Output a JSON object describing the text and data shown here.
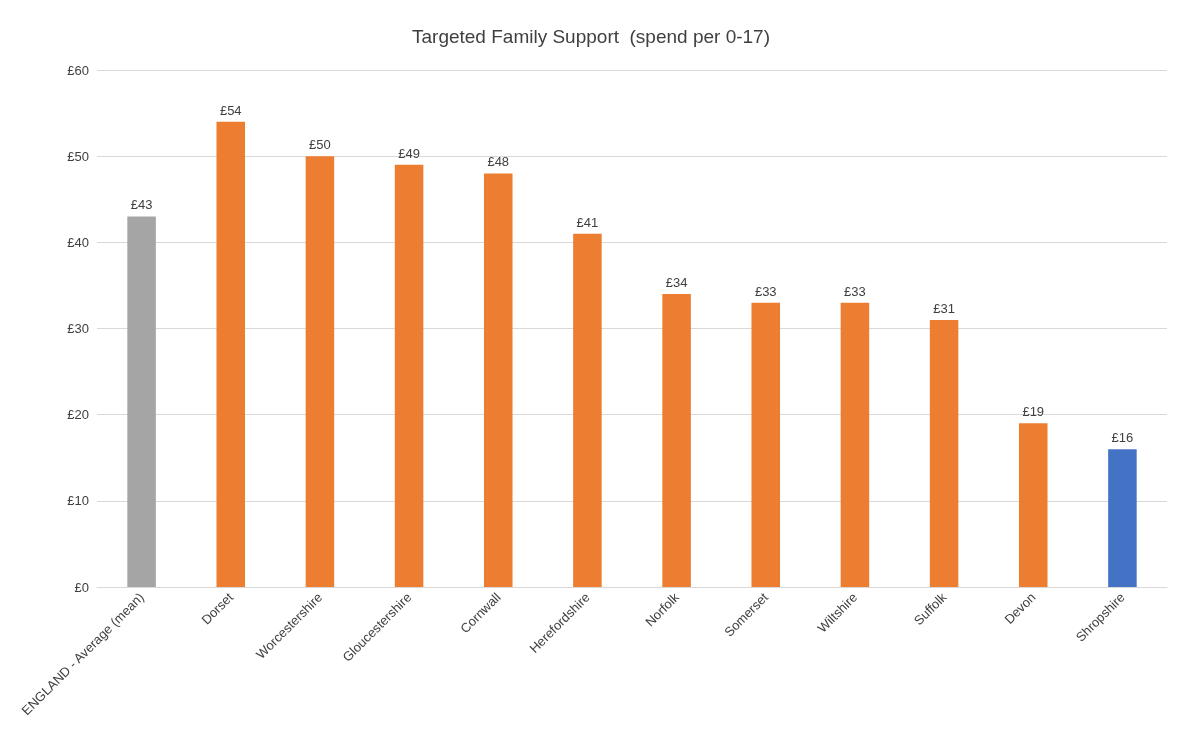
{
  "chart_data": {
    "type": "bar",
    "title": "Targeted Family Support  (spend per 0-17)",
    "categories": [
      "ENGLAND - Average (mean)",
      "Dorset",
      "Worcestershire",
      "Gloucestershire",
      "Cornwall",
      "Herefordshire",
      "Norfolk",
      "Somerset",
      "Wiltshire",
      "Suffolk",
      "Devon",
      "Shropshire"
    ],
    "values": [
      43,
      54,
      50,
      49,
      48,
      41,
      34,
      33,
      33,
      31,
      19,
      16
    ],
    "colors": [
      "#a5a5a5",
      "#ed7d31",
      "#ed7d31",
      "#ed7d31",
      "#ed7d31",
      "#ed7d31",
      "#ed7d31",
      "#ed7d31",
      "#ed7d31",
      "#ed7d31",
      "#ed7d31",
      "#4472c4"
    ],
    "value_labels": [
      "£43",
      "£54",
      "£50",
      "£49",
      "£48",
      "£41",
      "£34",
      "£33",
      "£33",
      "£31",
      "£19",
      "£16"
    ],
    "ylim": [
      0,
      60
    ],
    "yticks": [
      {
        "value": 0,
        "label": "£0"
      },
      {
        "value": 10,
        "label": "£10"
      },
      {
        "value": 20,
        "label": "£20"
      },
      {
        "value": 30,
        "label": "£30"
      },
      {
        "value": 40,
        "label": "£40"
      },
      {
        "value": 50,
        "label": "£50"
      },
      {
        "value": 60,
        "label": "£60"
      }
    ],
    "grid": "y"
  }
}
